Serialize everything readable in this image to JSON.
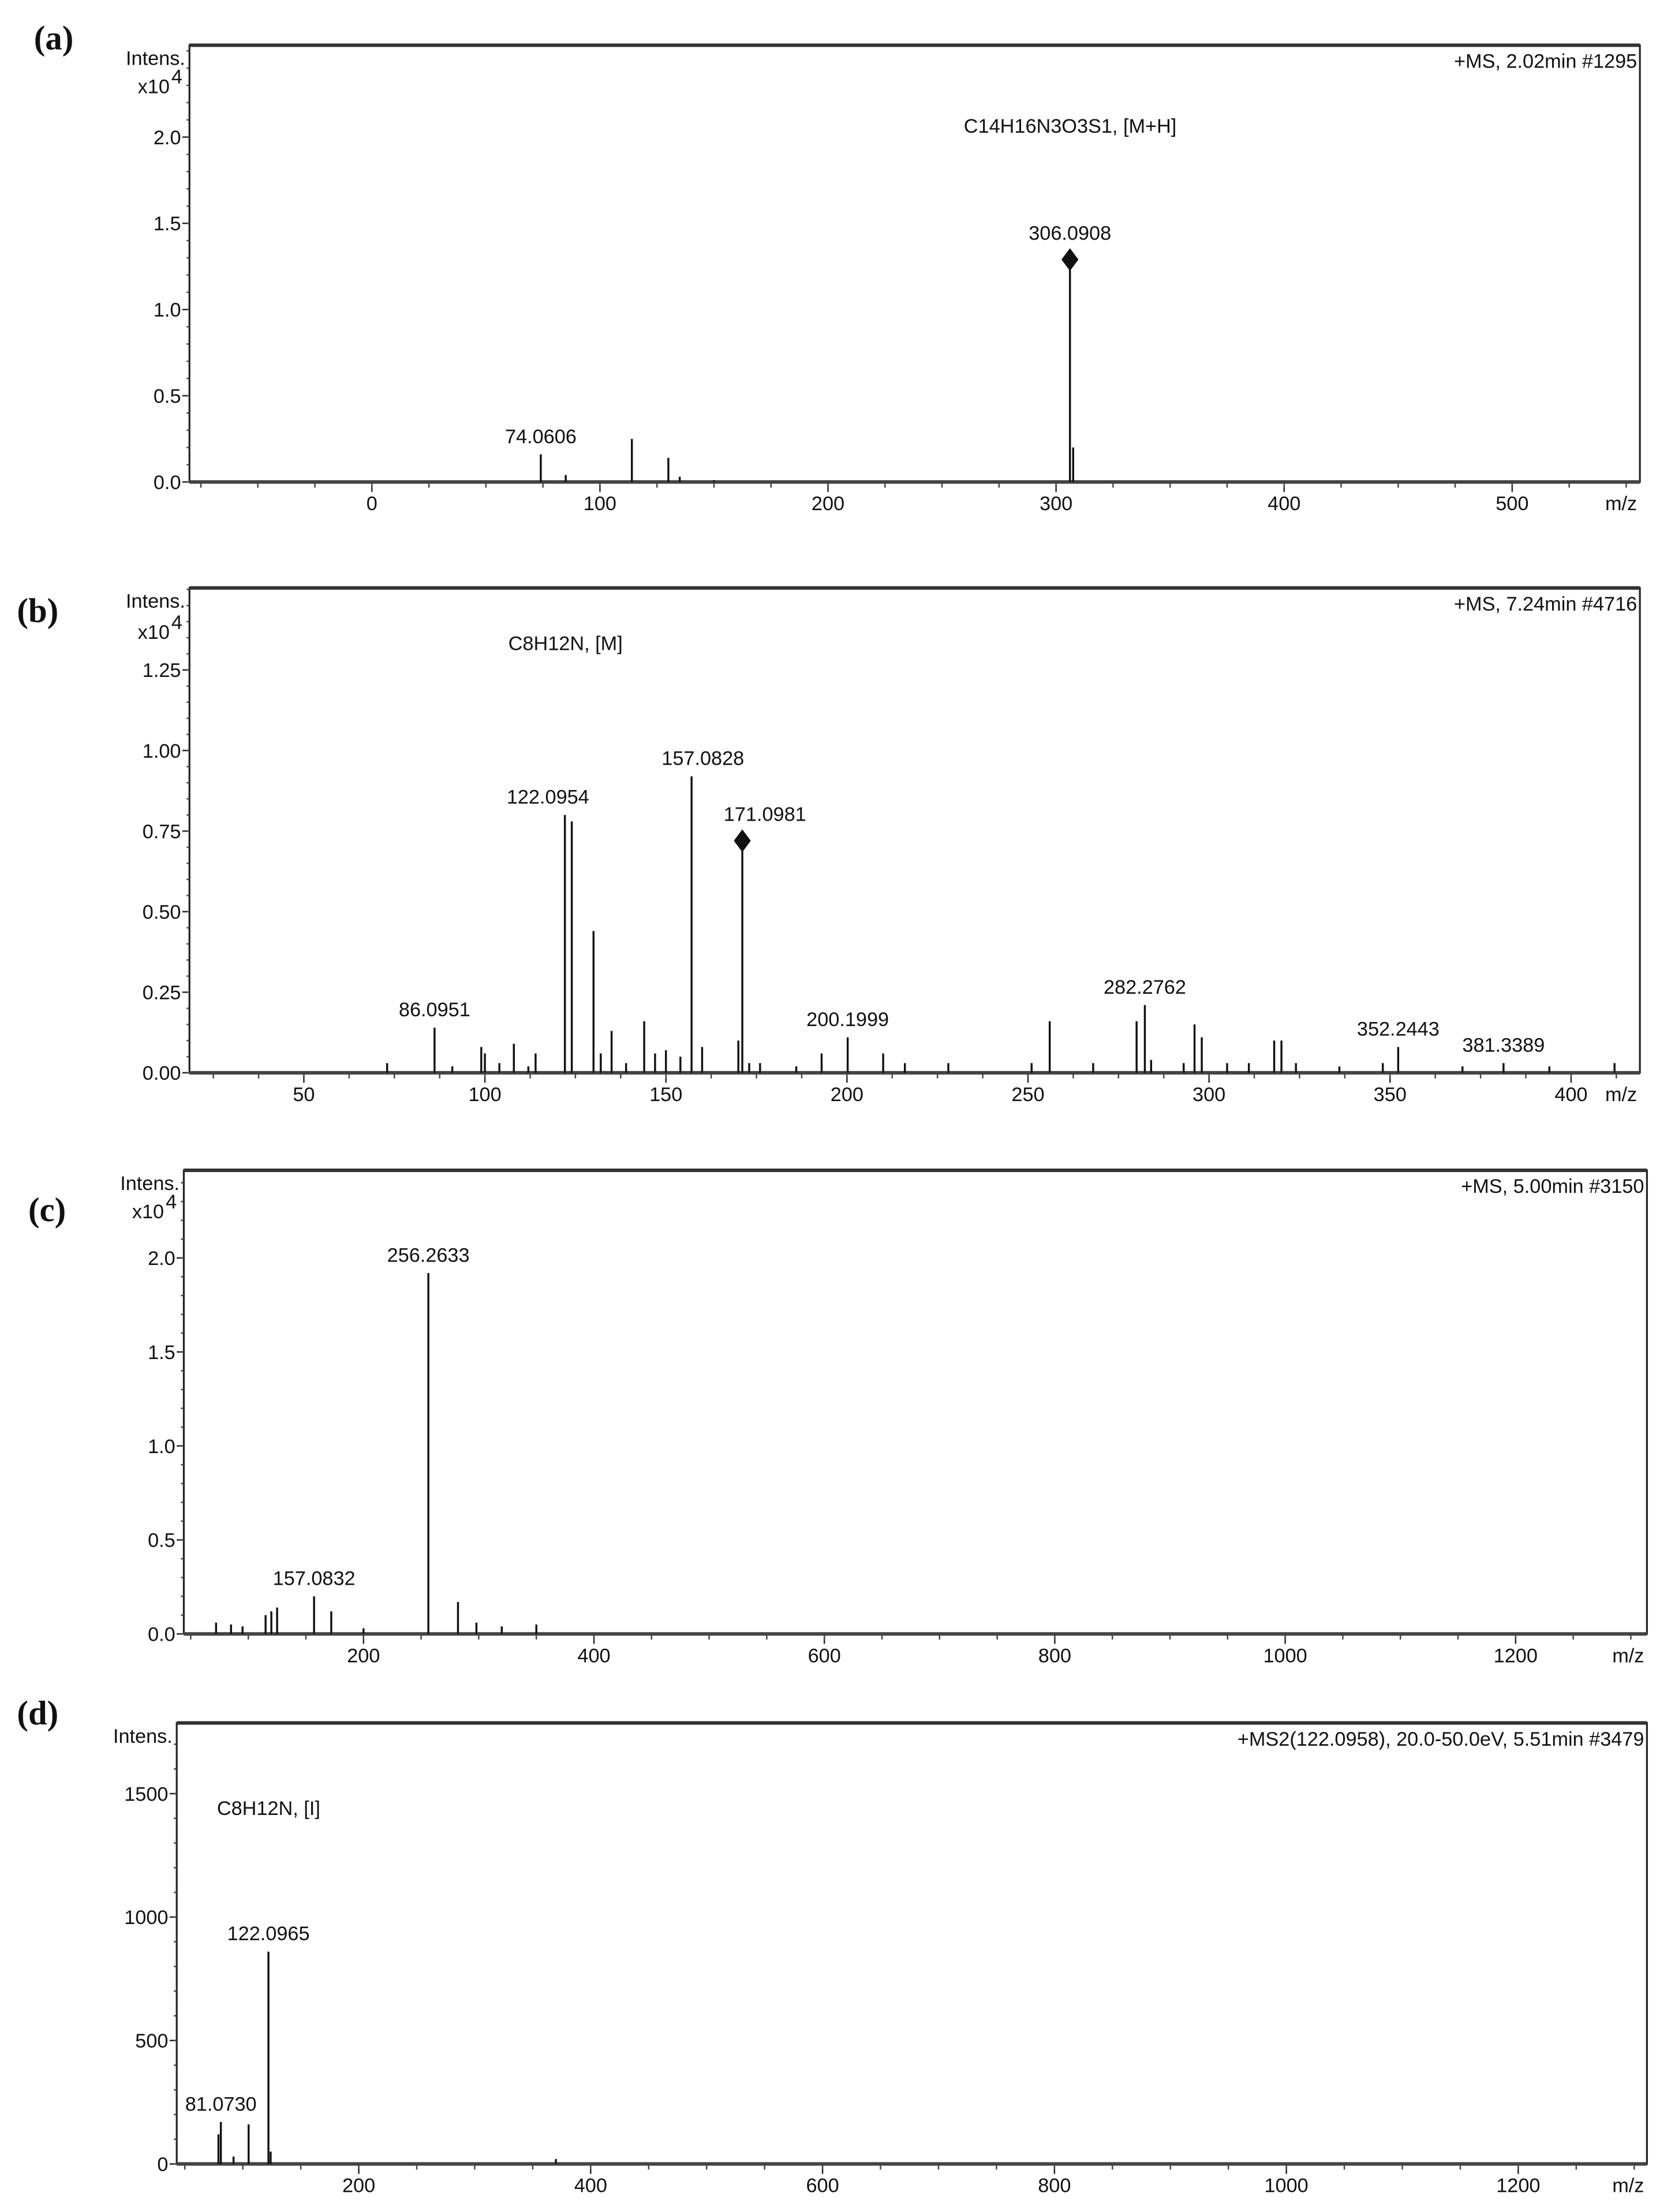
{
  "chart_data": [
    {
      "type": "bar",
      "panel": "(a)",
      "info": "+MS, 2.02min #1295",
      "formula": "C14H16N3O3S1, [M+H]",
      "ylabel": "Intens.",
      "yscale": "x10",
      "yexp": "4",
      "xlabel": "m/z",
      "xlim": [
        -80,
        556
      ],
      "ylim": [
        0,
        2.5
      ],
      "xticks": [
        0,
        100,
        200,
        300,
        400,
        500
      ],
      "yticks": [
        "0.0",
        "0.5",
        "1.0",
        "1.5",
        "2.0"
      ],
      "peaks": [
        [
          74.0606,
          0.16
        ],
        [
          85,
          0.04
        ],
        [
          114,
          0.25
        ],
        [
          130,
          0.14
        ],
        [
          135,
          0.03
        ],
        [
          150,
          0.01
        ],
        [
          306.0908,
          1.29
        ],
        [
          307.5,
          0.2
        ]
      ],
      "labels": [
        {
          "mz": 74.0606,
          "text": "74.0606"
        },
        {
          "mz": 306.0908,
          "text": "306.0908",
          "diamond": true
        }
      ]
    },
    {
      "type": "bar",
      "panel": "(b)",
      "info": "+MS, 7.24min #4716",
      "formula": "C8H12N, [M]",
      "ylabel": "Intens.",
      "yscale": "x10",
      "yexp": "4",
      "xlabel": "m/z",
      "xlim": [
        18.4,
        419
      ],
      "ylim": [
        0,
        1.5
      ],
      "xticks": [
        50,
        100,
        150,
        200,
        250,
        300,
        350,
        400
      ],
      "yticks": [
        "0.00",
        "0.25",
        "0.50",
        "0.75",
        "1.00",
        "1.25"
      ],
      "peaks": [
        [
          73,
          0.03
        ],
        [
          86.0951,
          0.14
        ],
        [
          91,
          0.02
        ],
        [
          99,
          0.08
        ],
        [
          100,
          0.06
        ],
        [
          104,
          0.03
        ],
        [
          108,
          0.09
        ],
        [
          112,
          0.02
        ],
        [
          114,
          0.06
        ],
        [
          122.0954,
          0.8
        ],
        [
          124,
          0.78
        ],
        [
          130,
          0.44
        ],
        [
          132,
          0.06
        ],
        [
          135,
          0.13
        ],
        [
          139,
          0.03
        ],
        [
          144,
          0.16
        ],
        [
          147,
          0.06
        ],
        [
          150,
          0.07
        ],
        [
          154,
          0.05
        ],
        [
          157.0828,
          0.92
        ],
        [
          160,
          0.08
        ],
        [
          170,
          0.1
        ],
        [
          171.0981,
          0.72
        ],
        [
          173,
          0.03
        ],
        [
          176,
          0.03
        ],
        [
          186,
          0.02
        ],
        [
          193,
          0.06
        ],
        [
          200.1999,
          0.11
        ],
        [
          210,
          0.06
        ],
        [
          216,
          0.03
        ],
        [
          228,
          0.03
        ],
        [
          251,
          0.03
        ],
        [
          256,
          0.16
        ],
        [
          268,
          0.03
        ],
        [
          280,
          0.16
        ],
        [
          282.2762,
          0.21
        ],
        [
          284,
          0.04
        ],
        [
          293,
          0.03
        ],
        [
          296,
          0.15
        ],
        [
          298,
          0.11
        ],
        [
          305,
          0.03
        ],
        [
          311,
          0.03
        ],
        [
          318,
          0.1
        ],
        [
          320,
          0.1
        ],
        [
          324,
          0.03
        ],
        [
          336,
          0.02
        ],
        [
          348,
          0.03
        ],
        [
          352.2443,
          0.08
        ],
        [
          370,
          0.02
        ],
        [
          381.3389,
          0.03
        ],
        [
          394,
          0.02
        ],
        [
          412,
          0.03
        ]
      ],
      "labels": [
        {
          "mz": 86.0951,
          "text": "86.0951"
        },
        {
          "mz": 122.0954,
          "text": "122.0954",
          "dx": -12
        },
        {
          "mz": 157.0828,
          "text": "157.0828",
          "dx": 8
        },
        {
          "mz": 171.0981,
          "text": "171.0981",
          "dx": 16,
          "diamond": true
        },
        {
          "mz": 200.1999,
          "text": "200.1999"
        },
        {
          "mz": 282.2762,
          "text": "282.2762"
        },
        {
          "mz": 352.2443,
          "text": "352.2443"
        },
        {
          "mz": 381.3389,
          "text": "381.3389"
        }
      ]
    },
    {
      "type": "bar",
      "panel": "(c)",
      "info": "+MS, 5.00min #3150",
      "formula": "",
      "ylabel": "Intens.",
      "yscale": "x10",
      "yexp": "4",
      "xlabel": "m/z",
      "xlim": [
        44,
        1314
      ],
      "ylim": [
        0,
        2.45
      ],
      "xticks": [
        200,
        400,
        600,
        800,
        1000,
        1200
      ],
      "yticks": [
        "0.0",
        "0.5",
        "1.0",
        "1.5",
        "2.0"
      ],
      "peaks": [
        [
          72,
          0.06
        ],
        [
          85,
          0.05
        ],
        [
          95,
          0.04
        ],
        [
          115,
          0.1
        ],
        [
          120,
          0.12
        ],
        [
          125,
          0.14
        ],
        [
          157.0832,
          0.2
        ],
        [
          172,
          0.12
        ],
        [
          200,
          0.03
        ],
        [
          256.2633,
          1.92
        ],
        [
          282,
          0.17
        ],
        [
          298,
          0.06
        ],
        [
          320,
          0.04
        ],
        [
          350,
          0.05
        ]
      ],
      "labels": [
        {
          "mz": 157.0832,
          "text": "157.0832"
        },
        {
          "mz": 256.2633,
          "text": "256.2633"
        }
      ]
    },
    {
      "type": "bar",
      "panel": "(d)",
      "info": "+MS2(122.0958), 20.0-50.0eV, 5.51min #3479",
      "formula": "C8H12N, [I]",
      "ylabel": "Intens.",
      "yscale": "",
      "yexp": "",
      "xlabel": "m/z",
      "xlim": [
        43,
        1311
      ],
      "ylim": [
        0,
        1800
      ],
      "xticks": [
        200,
        400,
        600,
        800,
        1000,
        1200
      ],
      "yticks": [
        "0",
        "500",
        "1000",
        "1500"
      ],
      "peaks": [
        [
          79,
          120
        ],
        [
          81.073,
          170
        ],
        [
          92,
          30
        ],
        [
          105,
          160
        ],
        [
          122.0965,
          860
        ],
        [
          124,
          50
        ],
        [
          370,
          20
        ]
      ],
      "labels": [
        {
          "mz": 81.073,
          "text": "81.0730"
        },
        {
          "mz": 122.0965,
          "text": "122.0965"
        }
      ]
    }
  ]
}
